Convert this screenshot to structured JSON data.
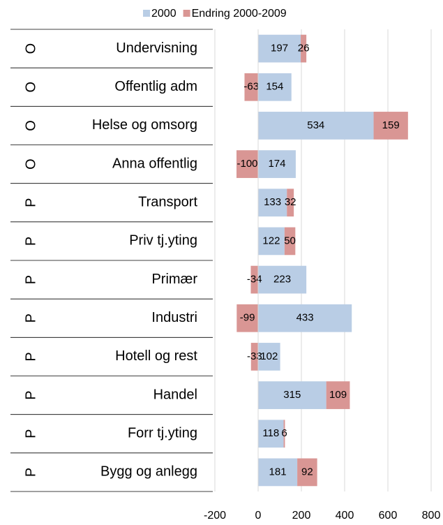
{
  "chart_data": {
    "type": "bar",
    "orientation": "horizontal",
    "stacked": true,
    "categories": [
      "Undervisning",
      "Offentlig adm",
      "Helse og omsorg",
      "Anna offentlig",
      "Transport",
      "Priv tj.yting",
      "Primær",
      "Industri",
      "Hotell og rest",
      "Handel",
      "Forr tj.yting",
      "Bygg og anlegg"
    ],
    "groups": [
      "O",
      "O",
      "O",
      "O",
      "P",
      "P",
      "P",
      "P",
      "P",
      "P",
      "P",
      "P"
    ],
    "series": [
      {
        "name": "2000",
        "color": "#b9cde5",
        "values": [
          197,
          154,
          534,
          174,
          133,
          122,
          223,
          433,
          102,
          315,
          118,
          181
        ]
      },
      {
        "name": "Endring 2000-2009",
        "color": "#d99694",
        "values": [
          26,
          -63,
          159,
          -100,
          32,
          50,
          -34,
          -99,
          -33,
          109,
          6,
          92
        ]
      }
    ],
    "xlim": [
      -200,
      800
    ],
    "xticks": [
      -200,
      0,
      200,
      400,
      600,
      800
    ],
    "grid": true,
    "legend": "top"
  }
}
